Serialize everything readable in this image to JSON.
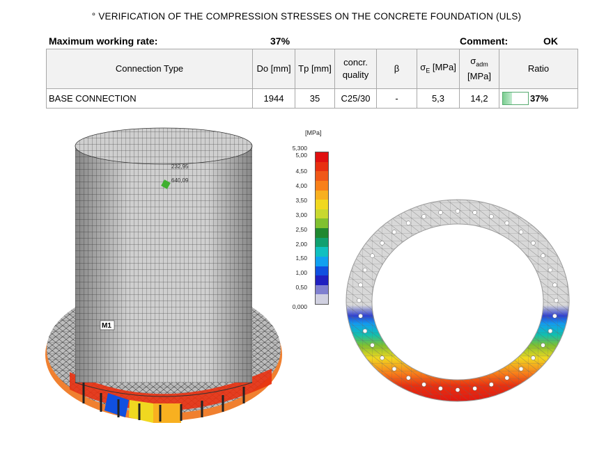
{
  "title": "° VERIFICATION OF THE COMPRESSION STRESSES ON THE CONCRETE FOUNDATION (ULS)",
  "summary": {
    "rate_label": "Maximum working rate:",
    "rate_value": "37%",
    "comment_label": "Comment:",
    "comment_value": "OK"
  },
  "table": {
    "headers": {
      "connection_type": "Connection Type",
      "do": "Do [mm]",
      "tp": "Tp [mm]",
      "concr_1": "concr.",
      "concr_2": "quality",
      "beta": "β",
      "sigma_e_sym": "σ",
      "sigma_e_sub": "E",
      "sigma_e_unit": " [MPa]",
      "sigma_adm_sym": "σ",
      "sigma_adm_sub": "adm",
      "sigma_adm_unit": "[MPa]",
      "ratio": "Ratio"
    },
    "rows": [
      {
        "connection_type": "BASE CONNECTION",
        "do": "1944",
        "tp": "35",
        "concr_quality": "C25/30",
        "beta": "-",
        "sigma_e": "5,3",
        "sigma_adm": "14,2",
        "ratio": "37%",
        "ratio_value": 0.37
      }
    ]
  },
  "legend": {
    "unit": "[MPa]",
    "labels": [
      "5,300",
      "5,00",
      "4,50",
      "4,00",
      "3,50",
      "3,00",
      "2,50",
      "2,00",
      "1,50",
      "1,00",
      "0,50",
      "0,000"
    ],
    "colors": [
      "#e01010",
      "#e83010",
      "#f05818",
      "#f8801a",
      "#f8b020",
      "#f0d820",
      "#c8d830",
      "#80c030",
      "#208830",
      "#10a070",
      "#10c0c0",
      "#10a0f0",
      "#1050e0",
      "#2020c0",
      "#8080d0",
      "#d0d0e0"
    ]
  },
  "model": {
    "label": "M1",
    "annotation_1": "232,95",
    "annotation_2": "640,09"
  }
}
